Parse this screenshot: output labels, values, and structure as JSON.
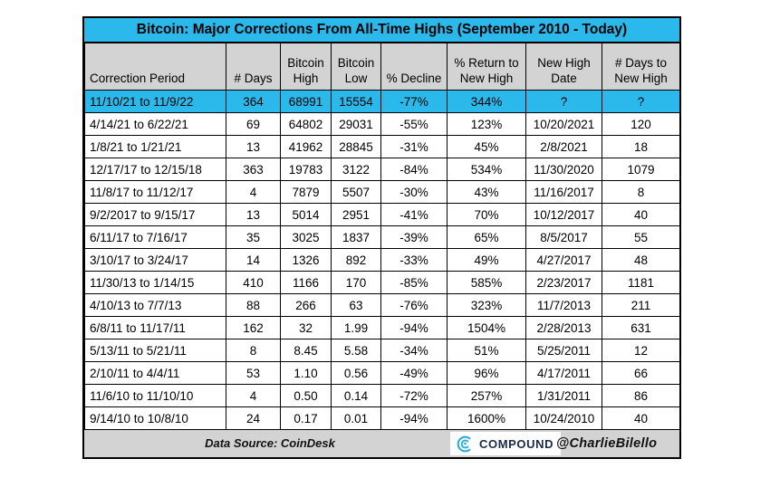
{
  "title": "Bitcoin: Major Corrections From All-Time Highs (September 2010 - Today)",
  "colors": {
    "accent_cyan": "#2BB8EA",
    "header_gray": "#D3D3D3",
    "border_black": "#000000",
    "logo_cyan": "#29ABE2",
    "logo_navy": "#1B2B4A"
  },
  "chart_data": {
    "type": "table",
    "title": "Bitcoin: Major Corrections From All-Time Highs (September 2010 - Today)",
    "columns": [
      "Correction Period",
      "# Days",
      "Bitcoin High",
      "Bitcoin Low",
      "% Decline",
      "% Return to New High",
      "New High Date",
      "# Days to New High"
    ],
    "highlighted_row_index": 0,
    "rows": [
      [
        "11/10/21 to 11/9/22",
        "364",
        "68991",
        "15554",
        "-77%",
        "344%",
        "?",
        "?"
      ],
      [
        "4/14/21 to 6/22/21",
        "69",
        "64802",
        "29031",
        "-55%",
        "123%",
        "10/20/2021",
        "120"
      ],
      [
        "1/8/21 to 1/21/21",
        "13",
        "41962",
        "28845",
        "-31%",
        "45%",
        "2/8/2021",
        "18"
      ],
      [
        "12/17/17 to 12/15/18",
        "363",
        "19783",
        "3122",
        "-84%",
        "534%",
        "11/30/2020",
        "1079"
      ],
      [
        "11/8/17 to 11/12/17",
        "4",
        "7879",
        "5507",
        "-30%",
        "43%",
        "11/16/2017",
        "8"
      ],
      [
        "9/2/2017 to 9/15/17",
        "13",
        "5014",
        "2951",
        "-41%",
        "70%",
        "10/12/2017",
        "40"
      ],
      [
        "6/11/17 to 7/16/17",
        "35",
        "3025",
        "1837",
        "-39%",
        "65%",
        "8/5/2017",
        "55"
      ],
      [
        "3/10/17 to 3/24/17",
        "14",
        "1326",
        "892",
        "-33%",
        "49%",
        "4/27/2017",
        "48"
      ],
      [
        "11/30/13 to 1/14/15",
        "410",
        "1166",
        "170",
        "-85%",
        "585%",
        "2/23/2017",
        "1181"
      ],
      [
        "4/10/13 to 7/7/13",
        "88",
        "266",
        "63",
        "-76%",
        "323%",
        "11/7/2013",
        "211"
      ],
      [
        "6/8/11 to 11/17/11",
        "162",
        "32",
        "1.99",
        "-94%",
        "1504%",
        "2/28/2013",
        "631"
      ],
      [
        "5/13/11 to 5/21/11",
        "8",
        "8.45",
        "5.58",
        "-34%",
        "51%",
        "5/25/2011",
        "12"
      ],
      [
        "2/10/11 to 4/4/11",
        "53",
        "1.10",
        "0.56",
        "-49%",
        "96%",
        "4/17/2011",
        "66"
      ],
      [
        "11/6/10 to 11/10/10",
        "4",
        "0.50",
        "0.14",
        "-72%",
        "257%",
        "1/31/2011",
        "86"
      ],
      [
        "9/14/10 to 10/8/10",
        "24",
        "0.17",
        "0.01",
        "-94%",
        "1600%",
        "10/24/2010",
        "40"
      ]
    ]
  },
  "footer": {
    "data_source": "Data Source: CoinDesk",
    "logo_text": "COMPOUND",
    "logo_icon": "compound-c-icon",
    "handle": "@CharlieBilello"
  }
}
